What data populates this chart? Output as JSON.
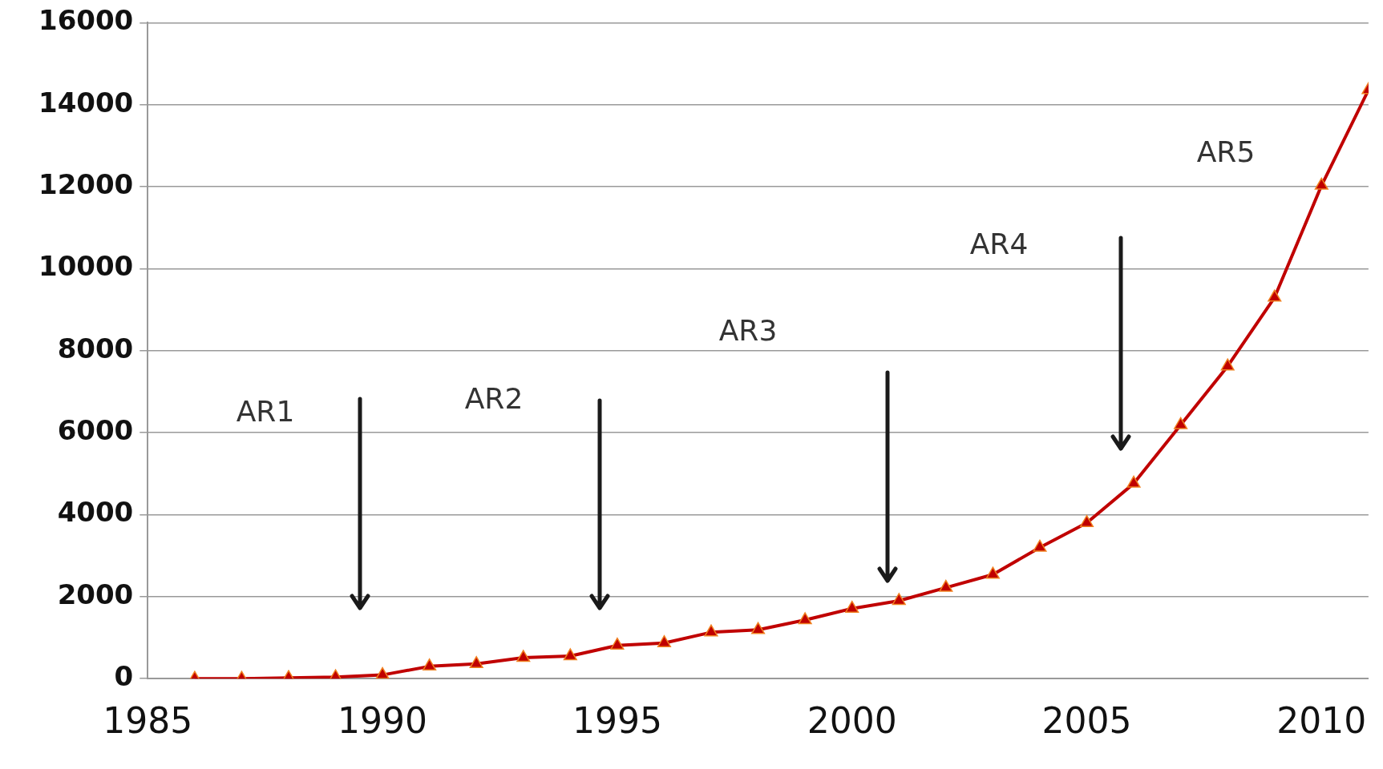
{
  "chart_data": {
    "type": "line",
    "x": [
      1986,
      1987,
      1988,
      1989,
      1990,
      1991,
      1992,
      1993,
      1994,
      1995,
      1996,
      1997,
      1998,
      1999,
      2000,
      2001,
      2002,
      2003,
      2004,
      2005,
      2006,
      2007,
      2008,
      2009,
      2010,
      2011
    ],
    "series": [
      {
        "color": "#c00000",
        "values": [
          0,
          0,
          20,
          40,
          90,
          300,
          360,
          510,
          550,
          810,
          870,
          1130,
          1190,
          1430,
          1710,
          1900,
          2220,
          2540,
          3200,
          3800,
          4760,
          6190,
          7620,
          9300,
          12030,
          14360
        ]
      }
    ],
    "xlim": [
      1985,
      2011
    ],
    "xticks": [
      1985,
      1990,
      1995,
      2000,
      2005,
      2010
    ],
    "ylim": [
      0,
      16000
    ],
    "yticks": [
      0,
      2000,
      4000,
      6000,
      8000,
      10000,
      12000,
      14000,
      16000
    ],
    "grid": "y",
    "legend": false,
    "marker": "triangle",
    "line_style": "solid",
    "annotations": [
      "AR1",
      "AR2",
      "AR3",
      "AR4",
      "AR5"
    ]
  }
}
